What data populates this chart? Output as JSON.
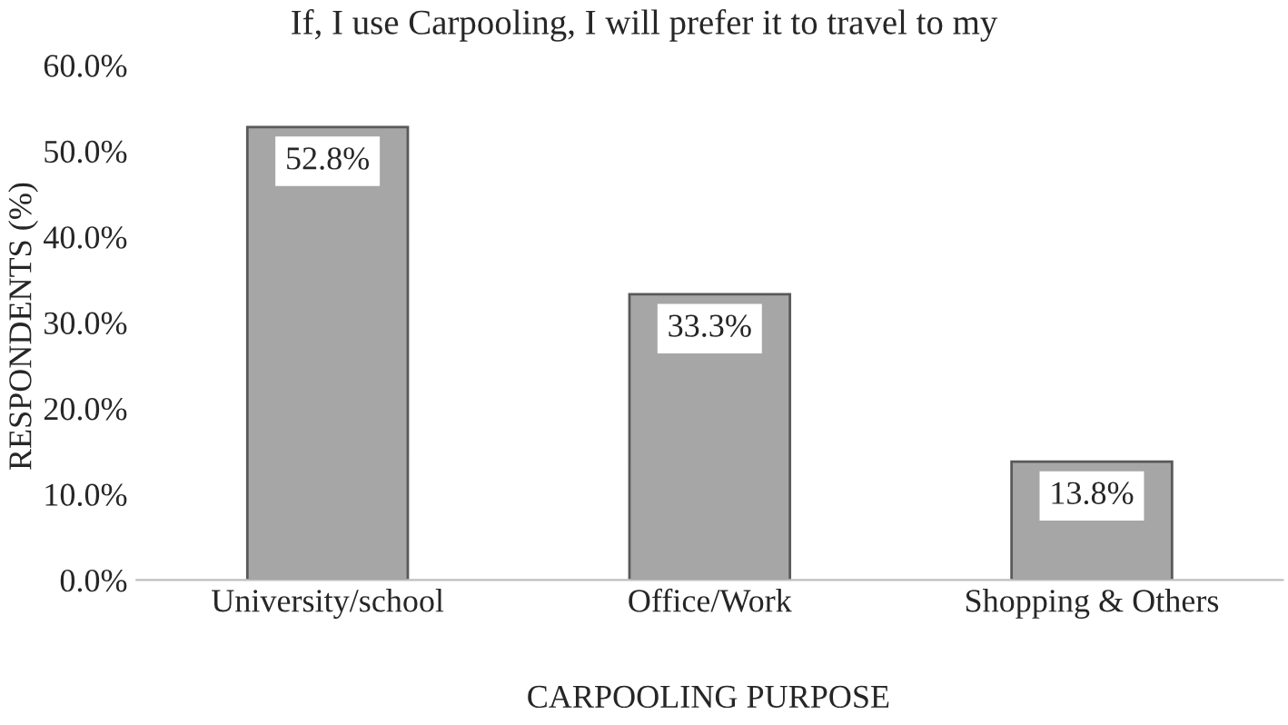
{
  "chart_data": {
    "type": "bar",
    "title": "If, I use Carpooling, I will prefer it to travel to my",
    "xlabel": "CARPOOLING PURPOSE",
    "ylabel": "RESPONDENTS (%)",
    "categories": [
      "University/school",
      "Office/Work",
      "Shopping & Others"
    ],
    "values": [
      52.8,
      33.3,
      13.8
    ],
    "color": "#a6a6a6",
    "value_labels": [
      "52.8%",
      "33.3%",
      "13.8%"
    ],
    "ylim": [
      0,
      60
    ],
    "yticks": [
      {
        "value": 0,
        "label": "0.0%"
      },
      {
        "value": 10,
        "label": "10.0%"
      },
      {
        "value": 20,
        "label": "20.0%"
      },
      {
        "value": 30,
        "label": "30.0%"
      },
      {
        "value": 40,
        "label": "40.0%"
      },
      {
        "value": 50,
        "label": "50.0%"
      },
      {
        "value": 60,
        "label": "60.0%"
      }
    ],
    "grid": false,
    "legend": false
  }
}
